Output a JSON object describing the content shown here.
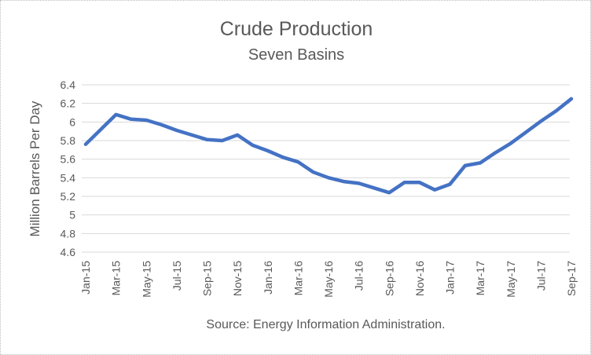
{
  "chart_data": {
    "type": "line",
    "title": "Crude Production",
    "subtitle": "Seven Basins",
    "ylabel": "Million Barrels Per Day",
    "xlabel": "",
    "source": "Source: Energy Information Administration.",
    "ylim": [
      4.6,
      6.4
    ],
    "ytick_step": 0.2,
    "yticks": [
      4.6,
      4.8,
      5.0,
      5.2,
      5.4,
      5.6,
      5.8,
      6.0,
      6.2,
      6.4
    ],
    "xtick_every": 2,
    "grid": true,
    "legend_position": "none",
    "x": [
      "Jan-15",
      "Feb-15",
      "Mar-15",
      "Apr-15",
      "May-15",
      "Jun-15",
      "Jul-15",
      "Aug-15",
      "Sep-15",
      "Oct-15",
      "Nov-15",
      "Dec-15",
      "Jan-16",
      "Feb-16",
      "Mar-16",
      "Apr-16",
      "May-16",
      "Jun-16",
      "Jul-16",
      "Aug-16",
      "Sep-16",
      "Oct-16",
      "Nov-16",
      "Dec-16",
      "Jan-17",
      "Feb-17",
      "Mar-17",
      "Apr-17",
      "May-17",
      "Jun-17",
      "Jul-17",
      "Aug-17",
      "Sep-17"
    ],
    "series": [
      {
        "name": "Crude production, seven basins",
        "values": [
          5.76,
          5.92,
          6.08,
          6.03,
          6.02,
          5.97,
          5.91,
          5.86,
          5.81,
          5.8,
          5.86,
          5.75,
          5.69,
          5.62,
          5.57,
          5.46,
          5.4,
          5.36,
          5.34,
          5.29,
          5.24,
          5.35,
          5.35,
          5.27,
          5.33,
          5.53,
          5.56,
          5.67,
          5.77,
          5.89,
          6.01,
          6.12,
          6.25
        ]
      }
    ],
    "colors": {
      "line": "#4472C4",
      "gridline": "#D9D9D9",
      "text": "#595959"
    }
  }
}
